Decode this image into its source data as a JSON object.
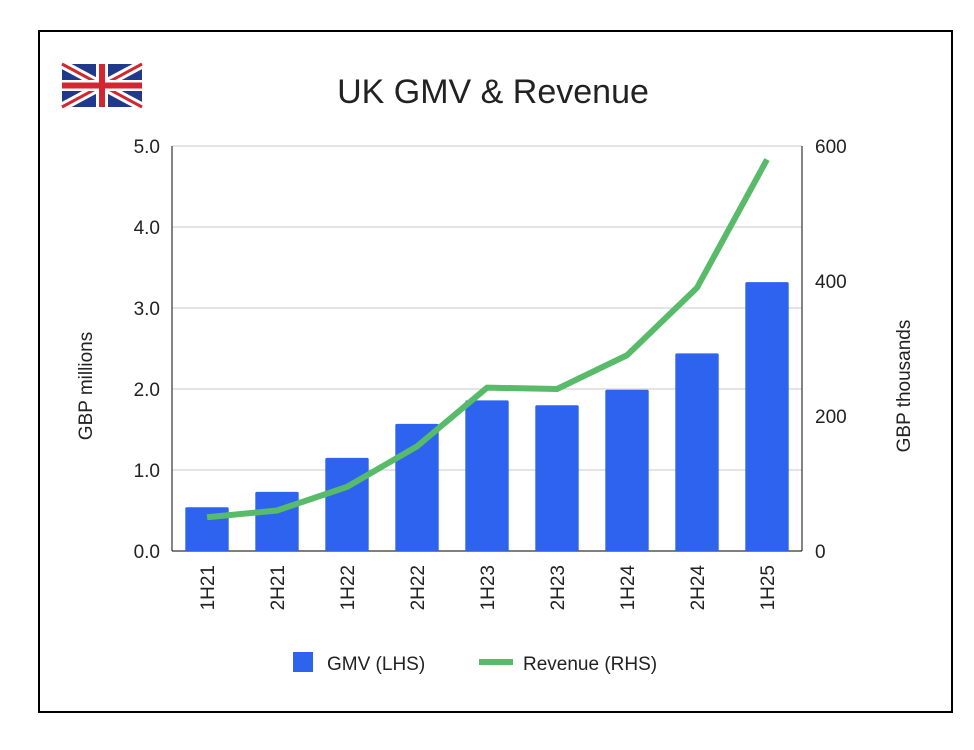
{
  "chart_data": {
    "type": "bar",
    "title": "UK GMV & Revenue",
    "categories": [
      "1H21",
      "2H21",
      "1H22",
      "2H22",
      "1H23",
      "2H23",
      "1H24",
      "2H24",
      "1H25"
    ],
    "series": [
      {
        "name": "GMV (LHS)",
        "type": "bar",
        "axis": "left",
        "color": "#2e63f0",
        "values": [
          0.54,
          0.73,
          1.15,
          1.57,
          1.86,
          1.8,
          1.99,
          2.44,
          3.32
        ]
      },
      {
        "name": "Revenue (RHS)",
        "type": "line",
        "axis": "right",
        "color": "#57bb6a",
        "values": [
          50,
          60,
          95,
          155,
          242,
          240,
          290,
          390,
          580
        ]
      }
    ],
    "y_left": {
      "label": "GBP millions",
      "lim": [
        0,
        5
      ],
      "ticks": [
        "0.0",
        "1.0",
        "2.0",
        "3.0",
        "4.0",
        "5.0"
      ]
    },
    "y_right": {
      "label": "GBP thousands",
      "lim": [
        0,
        600
      ],
      "ticks": [
        "0",
        "200",
        "400",
        "600"
      ]
    },
    "grid": true,
    "legend": "bottom",
    "logo": "uk-flag"
  }
}
